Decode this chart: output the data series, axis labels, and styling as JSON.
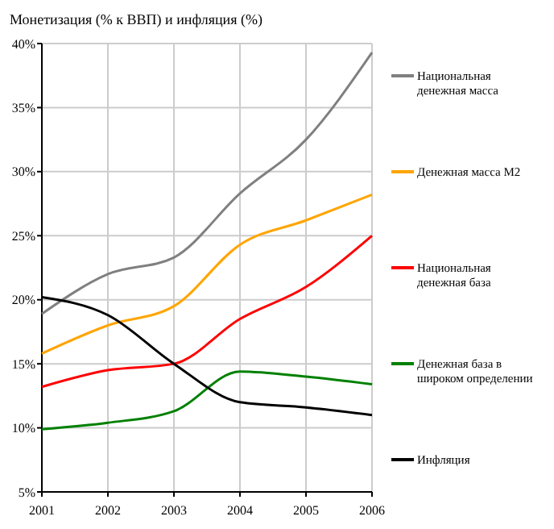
{
  "chart_data": {
    "type": "line",
    "title": "Монетизация (% к ВВП) и инфляция (%)",
    "x": [
      2001,
      2002,
      2003,
      2004,
      2005,
      2006
    ],
    "xlim": [
      2001,
      2006
    ],
    "xticks": [
      2001,
      2002,
      2003,
      2004,
      2005,
      2006
    ],
    "ylim": [
      5,
      40
    ],
    "yticks": [
      {
        "value": 5,
        "label": "5%"
      },
      {
        "value": 10,
        "label": "10%"
      },
      {
        "value": 15,
        "label": "15%"
      },
      {
        "value": 20,
        "label": "20%"
      },
      {
        "value": 25,
        "label": "25%"
      },
      {
        "value": 30,
        "label": "30%"
      },
      {
        "value": 35,
        "label": "35%"
      },
      {
        "value": 40,
        "label": "40%"
      }
    ],
    "grid": true,
    "legend": "right",
    "series": [
      {
        "name": "Национальная денежная масса",
        "color": "#808080",
        "values": [
          18.9,
          22.0,
          23.3,
          28.3,
          32.5,
          39.3
        ]
      },
      {
        "name": "Денежная масса М2",
        "color": "#ffa500",
        "values": [
          15.8,
          18.0,
          19.5,
          24.3,
          26.2,
          28.2
        ]
      },
      {
        "name": "Национальная денежная база",
        "color": "#ff0000",
        "values": [
          13.2,
          14.5,
          15.0,
          18.5,
          21.0,
          25.0
        ]
      },
      {
        "name": "Денежная база в широком определении",
        "color": "#008000",
        "values": [
          9.9,
          10.4,
          11.3,
          14.4,
          14.0,
          13.4
        ]
      },
      {
        "name": "Инфляция",
        "color": "#000000",
        "values": [
          20.2,
          18.8,
          15.0,
          12.0,
          11.6,
          11.0
        ]
      }
    ]
  }
}
